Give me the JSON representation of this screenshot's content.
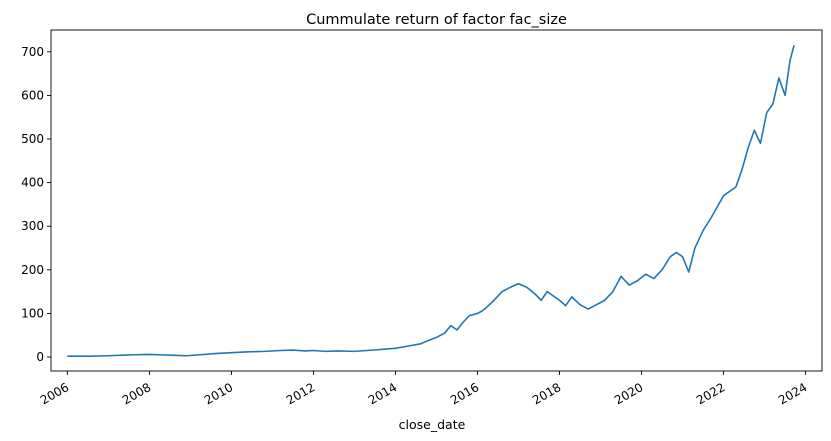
{
  "chart_data": {
    "type": "line",
    "title": "Cummulate return of factor fac_size",
    "xlabel": "close_date",
    "ylabel": "",
    "xlim": [
      2005.6,
      2024.4
    ],
    "ylim": [
      -32,
      750
    ],
    "grid": false,
    "legend": "none",
    "x_ticks": [
      {
        "value": 2006,
        "label": "2006"
      },
      {
        "value": 2008,
        "label": "2008"
      },
      {
        "value": 2010,
        "label": "2010"
      },
      {
        "value": 2012,
        "label": "2012"
      },
      {
        "value": 2014,
        "label": "2014"
      },
      {
        "value": 2016,
        "label": "2016"
      },
      {
        "value": 2018,
        "label": "2018"
      },
      {
        "value": 2020,
        "label": "2020"
      },
      {
        "value": 2022,
        "label": "2022"
      },
      {
        "value": 2024,
        "label": "2024"
      }
    ],
    "y_ticks": [
      {
        "value": 0,
        "label": "0"
      },
      {
        "value": 100,
        "label": "100"
      },
      {
        "value": 200,
        "label": "200"
      },
      {
        "value": 300,
        "label": "300"
      },
      {
        "value": 400,
        "label": "400"
      },
      {
        "value": 500,
        "label": "500"
      },
      {
        "value": 600,
        "label": "600"
      },
      {
        "value": 700,
        "label": "700"
      }
    ],
    "series": [
      {
        "color": "#1f77b4",
        "x": [
          2006.0,
          2006.5,
          2007.0,
          2007.5,
          2008.0,
          2008.3,
          2008.6,
          2008.9,
          2009.2,
          2009.6,
          2010.0,
          2010.4,
          2010.8,
          2011.2,
          2011.5,
          2011.8,
          2012.0,
          2012.3,
          2012.6,
          2013.0,
          2013.3,
          2013.6,
          2014.0,
          2014.3,
          2014.6,
          2014.8,
          2015.0,
          2015.2,
          2015.35,
          2015.5,
          2015.65,
          2015.8,
          2016.0,
          2016.1,
          2016.2,
          2016.4,
          2016.6,
          2016.8,
          2017.0,
          2017.2,
          2017.4,
          2017.55,
          2017.7,
          2017.85,
          2018.0,
          2018.15,
          2018.3,
          2018.5,
          2018.7,
          2018.9,
          2019.1,
          2019.3,
          2019.5,
          2019.7,
          2019.9,
          2020.1,
          2020.3,
          2020.5,
          2020.7,
          2020.85,
          2021.0,
          2021.15,
          2021.3,
          2021.5,
          2021.7,
          2021.85,
          2022.0,
          2022.15,
          2022.3,
          2022.45,
          2022.6,
          2022.75,
          2022.9,
          2023.05,
          2023.2,
          2023.35,
          2023.5,
          2023.62,
          2023.72
        ],
        "values": [
          2,
          2,
          3,
          5,
          6,
          5,
          4,
          3,
          5,
          8,
          10,
          12,
          13,
          15,
          16,
          14,
          15,
          13,
          14,
          13,
          15,
          17,
          20,
          25,
          30,
          38,
          45,
          55,
          72,
          62,
          80,
          95,
          100,
          105,
          112,
          130,
          150,
          160,
          168,
          160,
          145,
          130,
          150,
          140,
          130,
          118,
          138,
          120,
          110,
          120,
          130,
          150,
          185,
          165,
          175,
          190,
          180,
          200,
          230,
          240,
          230,
          195,
          250,
          290,
          320,
          345,
          370,
          380,
          390,
          430,
          480,
          520,
          490,
          560,
          580,
          640,
          600,
          680,
          715
        ]
      }
    ]
  }
}
